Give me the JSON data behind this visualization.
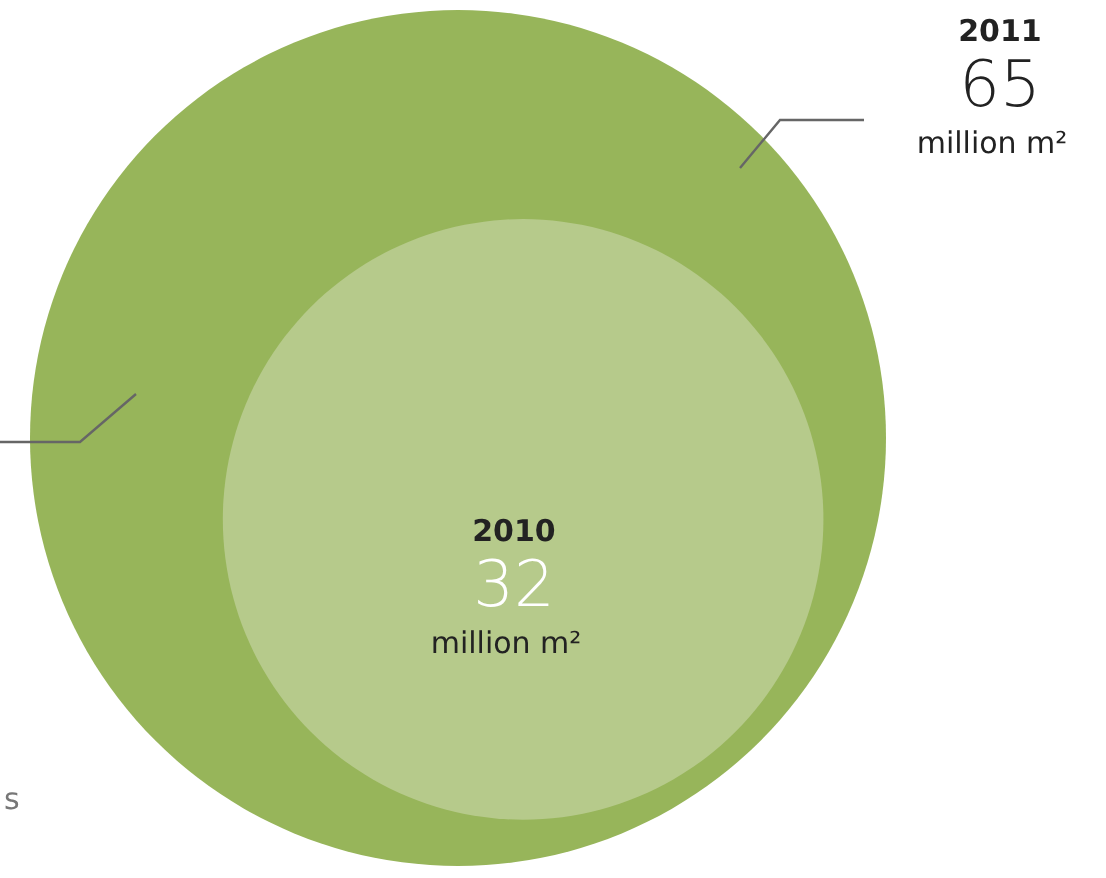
{
  "chart_data": {
    "type": "other",
    "categories": [
      "2011",
      "2010"
    ],
    "values": [
      65,
      32
    ],
    "colors": [
      "#97b55a",
      "#b6ca8b"
    ],
    "data_labels": true,
    "annotations": [
      "million m²",
      "million m²",
      "s"
    ]
  }
}
